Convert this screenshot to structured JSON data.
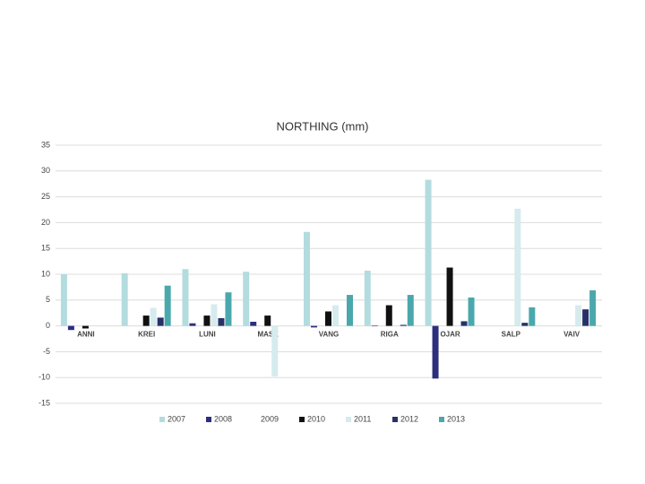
{
  "chart_data": {
    "type": "bar",
    "title": "NORTHING (mm)",
    "categories": [
      "ANNI",
      "KREI",
      "LUNI",
      "MASK",
      "VANG",
      "RIGA",
      "OJAR",
      "SALP",
      "VAIV"
    ],
    "series": [
      {
        "name": "2007",
        "color": "#b3dcdf",
        "values": [
          10,
          10.2,
          11,
          10.5,
          18.2,
          10.7,
          28.3,
          null,
          null
        ]
      },
      {
        "name": "2008",
        "color": "#2e2e7e",
        "values": [
          -0.8,
          null,
          0.5,
          0.8,
          -0.3,
          0.1,
          -10.2,
          null,
          null
        ]
      },
      {
        "name": "2009",
        "color": "#ffffff",
        "values": [
          null,
          null,
          null,
          null,
          null,
          null,
          null,
          null,
          null
        ]
      },
      {
        "name": "2010",
        "color": "#111111",
        "values": [
          -0.5,
          2,
          2,
          2,
          2.8,
          4,
          11.3,
          null,
          null
        ]
      },
      {
        "name": "2011",
        "color": "#d6ebed",
        "values": [
          null,
          3.5,
          4.2,
          -9.8,
          4,
          null,
          null,
          22.7,
          4
        ]
      },
      {
        "name": "2012",
        "color": "#263267",
        "values": [
          null,
          1.6,
          1.5,
          null,
          null,
          0.2,
          0.9,
          0.6,
          3.2
        ]
      },
      {
        "name": "2013",
        "color": "#4aa8ad",
        "values": [
          null,
          7.8,
          6.5,
          null,
          6,
          6,
          5.5,
          3.6,
          6.9
        ]
      }
    ],
    "ylim": [
      -15,
      35
    ],
    "yticks": [
      -15,
      -10,
      -5,
      0,
      5,
      10,
      15,
      20,
      25,
      30,
      35
    ],
    "grid": true,
    "legend": "bottom"
  }
}
